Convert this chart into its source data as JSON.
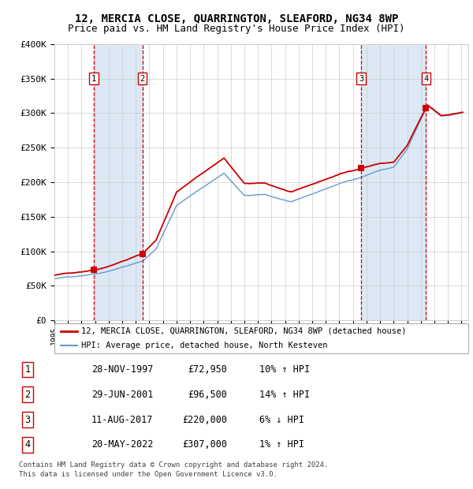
{
  "title": "12, MERCIA CLOSE, QUARRINGTON, SLEAFORD, NG34 8WP",
  "subtitle": "Price paid vs. HM Land Registry's House Price Index (HPI)",
  "legend_line1": "12, MERCIA CLOSE, QUARRINGTON, SLEAFORD, NG34 8WP (detached house)",
  "legend_line2": "HPI: Average price, detached house, North Kesteven",
  "footer1": "Contains HM Land Registry data © Crown copyright and database right 2024.",
  "footer2": "This data is licensed under the Open Government Licence v3.0.",
  "transactions": [
    {
      "num": 1,
      "date": "28-NOV-1997",
      "price": 72950,
      "hpi_pct": "10%",
      "hpi_dir": "↑"
    },
    {
      "num": 2,
      "date": "29-JUN-2001",
      "price": 96500,
      "hpi_pct": "14%",
      "hpi_dir": "↑"
    },
    {
      "num": 3,
      "date": "11-AUG-2017",
      "price": 220000,
      "hpi_pct": "6%",
      "hpi_dir": "↓"
    },
    {
      "num": 4,
      "date": "20-MAY-2022",
      "price": 307000,
      "hpi_pct": "1%",
      "hpi_dir": "↑"
    }
  ],
  "transaction_years": [
    1997.91,
    2001.49,
    2017.61,
    2022.38
  ],
  "red_line_color": "#cc0000",
  "blue_line_color": "#6699cc",
  "shade_color": "#dce9f5",
  "grid_color": "#cccccc",
  "dashed_line_color": "#cc0000",
  "marker_color": "#cc0000",
  "box_color": "#cc0000",
  "ylim": [
    0,
    400000
  ],
  "yticks": [
    0,
    50000,
    100000,
    150000,
    200000,
    250000,
    300000,
    350000,
    400000
  ],
  "xlim_start": 1995.0,
  "xlim_end": 2025.5,
  "xlabel_years": [
    1995,
    1996,
    1997,
    1998,
    1999,
    2000,
    2001,
    2002,
    2003,
    2004,
    2005,
    2006,
    2007,
    2008,
    2009,
    2010,
    2011,
    2012,
    2013,
    2014,
    2015,
    2016,
    2017,
    2018,
    2019,
    2020,
    2021,
    2022,
    2023,
    2024,
    2025
  ],
  "title_fontsize": 10,
  "subtitle_fontsize": 9,
  "background_color": "#ffffff",
  "hpi_base_points_t": [
    1995.0,
    1997.0,
    1998.5,
    2001.5,
    2002.5,
    2004.0,
    2007.5,
    2009.0,
    2010.5,
    2012.5,
    2014.0,
    2016.0,
    2017.5,
    2019.0,
    2020.0,
    2021.0,
    2022.0,
    2022.5,
    2023.5,
    2024.5,
    2025.0
  ],
  "hpi_base_points_v": [
    60000,
    65000,
    70000,
    87000,
    105000,
    168000,
    215000,
    182000,
    183000,
    172000,
    183000,
    198000,
    207000,
    218000,
    222000,
    248000,
    290000,
    310000,
    295000,
    298000,
    300000
  ],
  "noise_seed": 42
}
